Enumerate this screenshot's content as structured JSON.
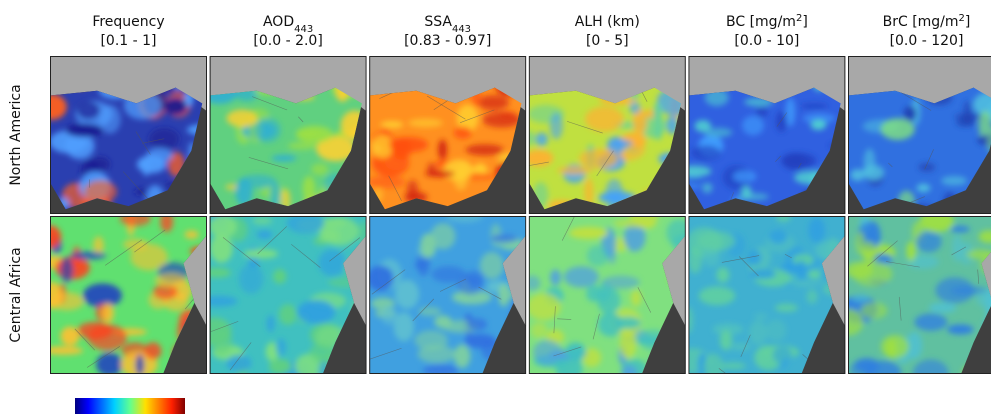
{
  "columns": [
    {
      "title": [
        {
          "text": "Frequency"
        }
      ],
      "range": "[0.1 - 1]"
    },
    {
      "title": [
        {
          "text": "AOD"
        },
        {
          "text": "443",
          "style": "sub"
        }
      ],
      "range": "[0.0 - 2.0]"
    },
    {
      "title": [
        {
          "text": "SSA"
        },
        {
          "text": "443",
          "style": "sub"
        }
      ],
      "range": "[0.83 - 0.97]"
    },
    {
      "title": [
        {
          "text": "ALH (km)"
        }
      ],
      "range": "[0 - 5]"
    },
    {
      "title": [
        {
          "text": "BC [mg/m"
        },
        {
          "text": "2",
          "style": "sup"
        },
        {
          "text": "]"
        }
      ],
      "range": "[0.0 - 10]"
    },
    {
      "title": [
        {
          "text": "BrC [mg/m"
        },
        {
          "text": "2",
          "style": "sup"
        },
        {
          "text": "]"
        }
      ],
      "range": "[0.0 - 120]"
    }
  ],
  "rows": [
    "North America",
    "Central Africa"
  ]
}
